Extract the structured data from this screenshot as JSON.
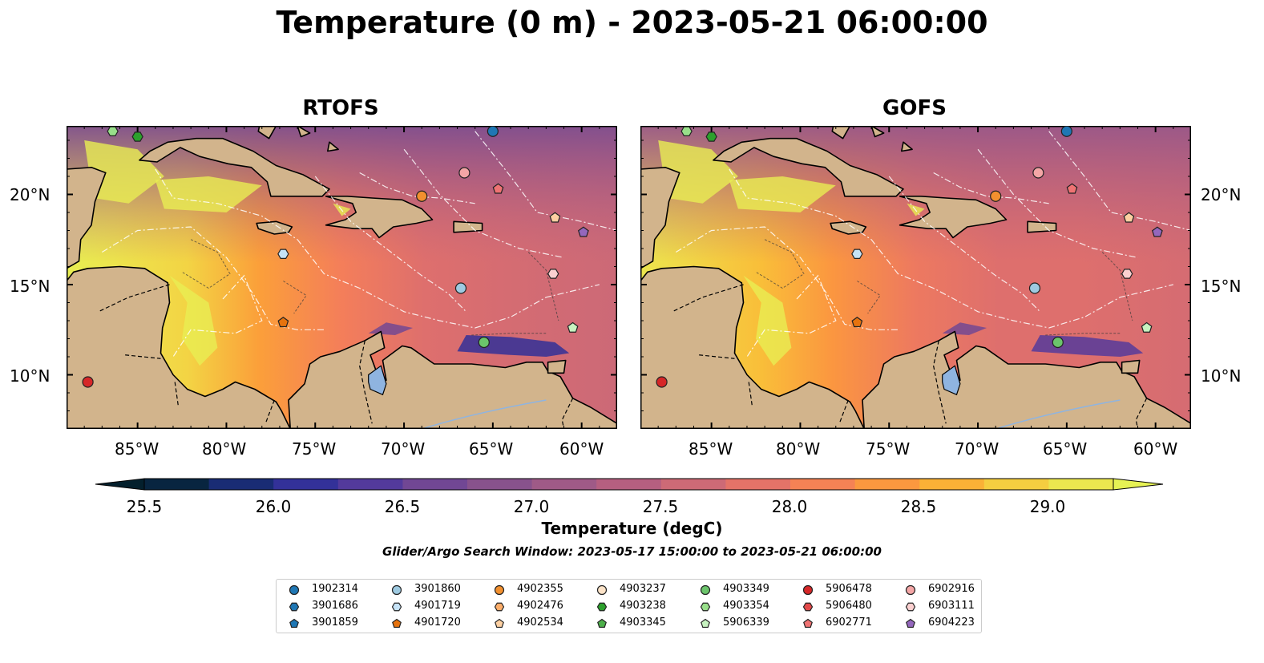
{
  "title": "Temperature (0 m) - 2023-05-21 06:00:00",
  "panels": [
    {
      "title": "RTOFS"
    },
    {
      "title": "GOFS"
    }
  ],
  "x_ticks": [
    "85°W",
    "80°W",
    "75°W",
    "70°W",
    "65°W",
    "60°W"
  ],
  "y_ticks": [
    "20°N",
    "15°N",
    "10°N"
  ],
  "map_extent": {
    "lon": [
      -89,
      -58
    ],
    "lat": [
      7,
      23.8
    ]
  },
  "colorbar": {
    "label": "Temperature (degC)",
    "ticks": [
      "25.5",
      "26.0",
      "26.5",
      "27.0",
      "27.5",
      "28.0",
      "28.5",
      "29.0"
    ],
    "range": [
      25.25,
      29.25
    ],
    "extend": "both",
    "colormap": "thermal",
    "colors": [
      "#04202d",
      "#0c2a50",
      "#222e8c",
      "#3c32a0",
      "#5c3d9a",
      "#764a92",
      "#8b538b",
      "#a05a87",
      "#b65f80",
      "#cc6977",
      "#e2716a",
      "#f47e5a",
      "#fb9243",
      "#fba834",
      "#f8c43a",
      "#f0de4a",
      "#e6f254"
    ]
  },
  "search_window": "Glider/Argo Search Window: 2023-05-17 15:00:00 to 2023-05-21 06:00:00",
  "land_color": "#d2b48c",
  "floats": [
    {
      "id": "1902314",
      "marker": "circle",
      "color": "#1f77b4",
      "lon": -65.0,
      "lat": 23.5
    },
    {
      "id": "3901686",
      "marker": "hexagon",
      "color": "#1f77b4",
      "lon": null,
      "lat": null
    },
    {
      "id": "3901859",
      "marker": "pentagon",
      "color": "#1f77b4",
      "lon": null,
      "lat": null
    },
    {
      "id": "3901860",
      "marker": "circle",
      "color": "#9ecae1",
      "lon": -66.8,
      "lat": 14.8
    },
    {
      "id": "4901719",
      "marker": "hexagon",
      "color": "#c6e3f7",
      "lon": -76.8,
      "lat": 16.7
    },
    {
      "id": "4901720",
      "marker": "pentagon",
      "color": "#e6730e",
      "lon": -76.8,
      "lat": 12.9
    },
    {
      "id": "4902355",
      "marker": "circle",
      "color": "#f2902f",
      "lon": -69.0,
      "lat": 19.9
    },
    {
      "id": "4902476",
      "marker": "hexagon",
      "color": "#fdae6b",
      "lon": null,
      "lat": null
    },
    {
      "id": "4902534",
      "marker": "pentagon",
      "color": "#fdd0a2",
      "lon": -61.5,
      "lat": 18.7
    },
    {
      "id": "4903237",
      "marker": "circle",
      "color": "#fde3c8",
      "lon": null,
      "lat": null
    },
    {
      "id": "4903238",
      "marker": "hexagon",
      "color": "#2ca02c",
      "lon": -85.0,
      "lat": 23.2
    },
    {
      "id": "4903345",
      "marker": "pentagon",
      "color": "#4daf4a",
      "lon": null,
      "lat": null
    },
    {
      "id": "4903349",
      "marker": "circle",
      "color": "#6bc46b",
      "lon": -65.5,
      "lat": 11.8
    },
    {
      "id": "4903354",
      "marker": "hexagon",
      "color": "#98df8a",
      "lon": -86.4,
      "lat": 23.5
    },
    {
      "id": "5906339",
      "marker": "pentagon",
      "color": "#c7f2c0",
      "lon": -60.5,
      "lat": 12.6
    },
    {
      "id": "5906478",
      "marker": "circle",
      "color": "#d62728",
      "lon": -87.8,
      "lat": 9.6
    },
    {
      "id": "5906480",
      "marker": "hexagon",
      "color": "#e34a4a",
      "lon": null,
      "lat": null
    },
    {
      "id": "6902771",
      "marker": "pentagon",
      "color": "#ef7373",
      "lon": -64.7,
      "lat": 20.3
    },
    {
      "id": "6902916",
      "marker": "circle",
      "color": "#f4a6a6",
      "lon": -66.6,
      "lat": 21.2
    },
    {
      "id": "6903111",
      "marker": "hexagon",
      "color": "#fbd0d0",
      "lon": -61.6,
      "lat": 15.6
    },
    {
      "id": "6904223",
      "marker": "pentagon",
      "color": "#9467bd",
      "lon": -59.9,
      "lat": 17.9
    }
  ]
}
